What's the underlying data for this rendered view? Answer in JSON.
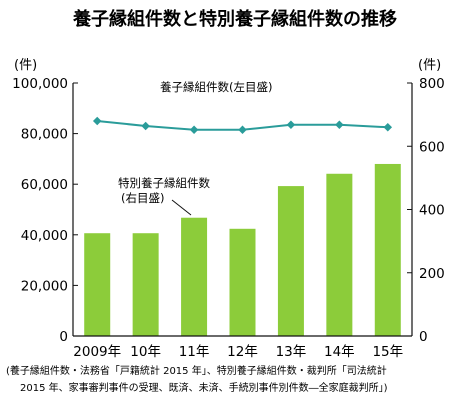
{
  "chart_data": {
    "type": "bar",
    "title": "養子縁組件数と特別養子縁組件数の推移",
    "left_axis_unit": "(件)",
    "right_axis_unit": "(件)",
    "categories": [
      "2009年",
      "10年",
      "11年",
      "12年",
      "13年",
      "14年",
      "15年"
    ],
    "left_ticks": [
      "0",
      "20,000",
      "40,000",
      "60,000",
      "80,000",
      "100,000"
    ],
    "right_ticks": [
      "0",
      "200",
      "400",
      "600",
      "800"
    ],
    "ylim_left": [
      0,
      100000
    ],
    "ylim_right": [
      0,
      800
    ],
    "grid": false,
    "series": [
      {
        "name": "養子縁組件数(左目盛)",
        "kind": "line",
        "axis": "left",
        "color": "#2a9c9a",
        "values": [
          85000,
          83000,
          81500,
          81500,
          83500,
          83500,
          82500
        ]
      },
      {
        "name": "特別養子縁組件数(右目盛)",
        "kind": "bar",
        "axis": "right",
        "color": "#8ccc3a",
        "values": [
          325,
          325,
          374,
          339,
          474,
          513,
          544
        ]
      }
    ],
    "source_line1": "(養子縁組件数・法務省「戸籍統計 2015 年」、特別養子縁組件数・裁判所「司法統計",
    "source_line2": "2015 年、家事審判事件の受理、既済、未済、手続別事件別件数―全家庭裁判所」)"
  }
}
